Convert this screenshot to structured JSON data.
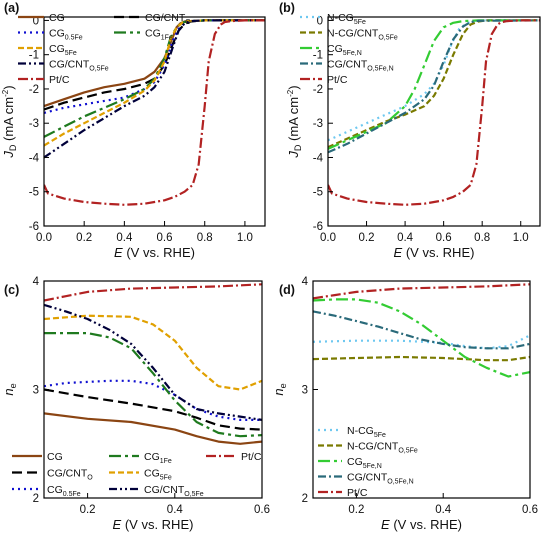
{
  "panel_labels": [
    "(a)",
    "(b)",
    "(c)",
    "(d)"
  ],
  "colors": {
    "CG": "#8b4513",
    "CG_CNTO": "#000000",
    "CG05Fe": "#1010d0",
    "CG1Fe": "#1f7a1f",
    "CG5Fe": "#e0a000",
    "CG_CNT05Fe": "#00003a",
    "PtC": "#b22222",
    "NCG5Fe": "#6ec8f0",
    "NCG_CNT05Fe": "#7a7a00",
    "CG5FeN": "#33cc33",
    "CG_CNT05FeN": "#2a6a7a"
  },
  "chart_data": [
    {
      "panel": "(a)",
      "type": "line",
      "xlabel": {
        "italic": "E",
        "rest": " (V vs. RHE)"
      },
      "ylabel": {
        "italic": "J",
        "sub": "D",
        "rest": " (mA cm",
        "sup": "-2",
        "end": ")"
      },
      "xlim": [
        0.0,
        1.1
      ],
      "ylim": [
        -6,
        0.1
      ],
      "xticks": [
        "0.0",
        "0.2",
        "0.4",
        "0.6",
        "0.8",
        "1.0"
      ],
      "yticks": [
        "0",
        "-1",
        "-2",
        "-3",
        "-4",
        "-5",
        "-6"
      ],
      "series": [
        {
          "key": "CG",
          "name": "CG",
          "sub": "",
          "dash": "",
          "x": [
            0,
            0.1,
            0.2,
            0.3,
            0.4,
            0.5,
            0.55,
            0.6,
            0.64,
            0.66,
            0.68,
            0.7,
            0.75,
            0.8,
            1.1
          ],
          "y": [
            -2.5,
            -2.3,
            -2.1,
            -1.95,
            -1.85,
            -1.7,
            -1.5,
            -1.1,
            -0.5,
            -0.2,
            -0.08,
            -0.03,
            -0.01,
            0,
            0
          ]
        },
        {
          "key": "CG_CNTO",
          "name": "CG/CNT",
          "sub": "O",
          "dash": "10 5",
          "x": [
            0,
            0.1,
            0.2,
            0.3,
            0.4,
            0.5,
            0.55,
            0.6,
            0.64,
            0.67,
            0.7,
            0.73,
            0.8,
            1.1
          ],
          "y": [
            -2.6,
            -2.4,
            -2.25,
            -2.1,
            -2.0,
            -1.85,
            -1.7,
            -1.3,
            -0.7,
            -0.3,
            -0.1,
            -0.03,
            0,
            0
          ]
        },
        {
          "key": "CG05Fe",
          "name": "CG",
          "sub": "0.5Fe",
          "dash": "2 4",
          "x": [
            0,
            0.1,
            0.2,
            0.3,
            0.4,
            0.5,
            0.55,
            0.6,
            0.64,
            0.67,
            0.7,
            0.73,
            0.8,
            1.1
          ],
          "y": [
            -2.7,
            -2.55,
            -2.45,
            -2.35,
            -2.25,
            -2.0,
            -1.8,
            -1.3,
            -0.6,
            -0.25,
            -0.08,
            -0.02,
            0,
            0
          ]
        },
        {
          "key": "CG1Fe",
          "name": "CG",
          "sub": "1Fe",
          "dash": "12 4 3 4",
          "x": [
            0,
            0.1,
            0.2,
            0.3,
            0.4,
            0.5,
            0.55,
            0.6,
            0.63,
            0.66,
            0.69,
            0.72,
            0.8,
            1.1
          ],
          "y": [
            -3.4,
            -3.1,
            -2.8,
            -2.55,
            -2.3,
            -2.0,
            -1.7,
            -1.1,
            -0.5,
            -0.2,
            -0.06,
            -0.02,
            0,
            0
          ]
        },
        {
          "key": "CG5Fe",
          "name": "CG",
          "sub": "5Fe",
          "dash": "6 3",
          "x": [
            0,
            0.1,
            0.2,
            0.3,
            0.4,
            0.5,
            0.55,
            0.6,
            0.63,
            0.66,
            0.69,
            0.72,
            0.8,
            1.1
          ],
          "y": [
            -3.65,
            -3.3,
            -3.0,
            -2.7,
            -2.4,
            -2.05,
            -1.75,
            -1.2,
            -0.55,
            -0.2,
            -0.06,
            -0.02,
            0,
            0
          ]
        },
        {
          "key": "CG_CNT05Fe",
          "name": "CG/CNT",
          "sub": "O,5Fe",
          "dash": "8 3 2 3 2 3",
          "x": [
            0,
            0.1,
            0.2,
            0.3,
            0.4,
            0.5,
            0.55,
            0.6,
            0.64,
            0.67,
            0.7,
            0.73,
            0.8,
            1.1
          ],
          "y": [
            -4.0,
            -3.6,
            -3.2,
            -2.85,
            -2.5,
            -2.2,
            -1.95,
            -1.5,
            -0.8,
            -0.3,
            -0.08,
            -0.02,
            0,
            0
          ]
        },
        {
          "key": "PtC",
          "name": "Pt/C",
          "sub": "",
          "dash": "10 3 2 3",
          "x": [
            0,
            0.02,
            0.1,
            0.2,
            0.3,
            0.4,
            0.5,
            0.6,
            0.65,
            0.7,
            0.74,
            0.77,
            0.8,
            0.82,
            0.85,
            0.88,
            0.9,
            0.93,
            0.96,
            1.0,
            1.1
          ],
          "y": [
            -4.8,
            -5.05,
            -5.2,
            -5.3,
            -5.35,
            -5.38,
            -5.35,
            -5.25,
            -5.15,
            -5.0,
            -4.8,
            -4.2,
            -2.5,
            -1.2,
            -0.4,
            -0.12,
            -0.05,
            -0.02,
            -0.01,
            0,
            0
          ]
        }
      ],
      "legend_layout": "two-column-top-left",
      "legend": [
        {
          "key": "CG",
          "col": 0,
          "row": 0
        },
        {
          "key": "CG_CNTO",
          "col": 1,
          "row": 0
        },
        {
          "key": "CG05Fe",
          "col": 0,
          "row": 1
        },
        {
          "key": "CG1Fe",
          "col": 1,
          "row": 1
        },
        {
          "key": "CG5Fe",
          "col": 0,
          "row": 2
        },
        {
          "key": "CG_CNT05Fe",
          "col": 0,
          "row": 3
        },
        {
          "key": "PtC",
          "col": 0,
          "row": 4
        }
      ]
    },
    {
      "panel": "(b)",
      "type": "line",
      "xlabel": {
        "italic": "E",
        "rest": " (V vs. RHE)"
      },
      "ylabel": {
        "italic": "J",
        "sub": "D",
        "rest": " (mA cm",
        "sup": "-2",
        "end": ")"
      },
      "xlim": [
        0.0,
        1.1
      ],
      "ylim": [
        -6,
        0.1
      ],
      "xticks": [
        "0.0",
        "0.2",
        "0.4",
        "0.6",
        "0.8",
        "1.0"
      ],
      "yticks": [
        "0",
        "-1",
        "-2",
        "-3",
        "-4",
        "-5",
        "-6"
      ],
      "series": [
        {
          "key": "NCG5Fe",
          "name": "N-CG",
          "sub": "5Fe",
          "dash": "2 4",
          "x": [
            0,
            0.1,
            0.2,
            0.3,
            0.4,
            0.5,
            0.55,
            0.6,
            0.64,
            0.68,
            0.72,
            0.76,
            0.8,
            1.1
          ],
          "y": [
            -3.5,
            -3.25,
            -3.0,
            -2.75,
            -2.5,
            -2.15,
            -1.85,
            -1.3,
            -0.7,
            -0.25,
            -0.08,
            -0.02,
            0,
            0
          ]
        },
        {
          "key": "NCG_CNT05Fe",
          "name": "N-CG/CNT",
          "sub": "O,5Fe",
          "dash": "6 3",
          "x": [
            0,
            0.1,
            0.2,
            0.3,
            0.4,
            0.5,
            0.55,
            0.6,
            0.65,
            0.7,
            0.74,
            0.78,
            0.82,
            1.1
          ],
          "y": [
            -3.7,
            -3.45,
            -3.2,
            -2.95,
            -2.75,
            -2.5,
            -2.2,
            -1.7,
            -1.0,
            -0.4,
            -0.12,
            -0.03,
            0,
            0
          ]
        },
        {
          "key": "CG5FeN",
          "name": "CG",
          "sub": "5Fe,N",
          "dash": "12 4 3 4",
          "x": [
            0,
            0.1,
            0.2,
            0.3,
            0.4,
            0.45,
            0.5,
            0.55,
            0.6,
            0.65,
            0.7,
            0.74,
            0.78,
            1.1
          ],
          "y": [
            -3.75,
            -3.5,
            -3.25,
            -3.0,
            -2.5,
            -2.0,
            -1.3,
            -0.6,
            -0.2,
            -0.07,
            -0.02,
            -0.01,
            0,
            0
          ]
        },
        {
          "key": "CG_CNT05FeN",
          "name": "CG/CNT",
          "sub": "O,5Fe,N",
          "dash": "8 3 2 3",
          "x": [
            0,
            0.1,
            0.2,
            0.3,
            0.4,
            0.5,
            0.55,
            0.6,
            0.65,
            0.7,
            0.74,
            0.78,
            1.1
          ],
          "y": [
            -3.85,
            -3.6,
            -3.3,
            -3.0,
            -2.7,
            -2.3,
            -1.9,
            -1.2,
            -0.55,
            -0.18,
            -0.05,
            -0.01,
            0
          ]
        },
        {
          "key": "PtC",
          "name": "Pt/C",
          "sub": "",
          "dash": "10 3 2 3",
          "x": [
            0,
            0.02,
            0.1,
            0.2,
            0.3,
            0.4,
            0.5,
            0.6,
            0.65,
            0.7,
            0.74,
            0.77,
            0.8,
            0.82,
            0.85,
            0.88,
            0.9,
            0.93,
            0.96,
            1.0,
            1.1
          ],
          "y": [
            -4.8,
            -5.05,
            -5.2,
            -5.3,
            -5.35,
            -5.38,
            -5.35,
            -5.25,
            -5.15,
            -5.0,
            -4.8,
            -4.2,
            -2.5,
            -1.2,
            -0.4,
            -0.12,
            -0.05,
            -0.02,
            -0.01,
            0,
            0
          ]
        }
      ],
      "legend_layout": "single-column-top-left",
      "legend": [
        {
          "key": "NCG5Fe",
          "col": 0,
          "row": 0
        },
        {
          "key": "NCG_CNT05Fe",
          "col": 0,
          "row": 1
        },
        {
          "key": "CG5FeN",
          "col": 0,
          "row": 2
        },
        {
          "key": "CG_CNT05FeN",
          "col": 0,
          "row": 3
        },
        {
          "key": "PtC",
          "col": 0,
          "row": 4
        }
      ]
    },
    {
      "panel": "(c)",
      "type": "line",
      "xlabel": {
        "italic": "E",
        "rest": " (V vs. RHE)"
      },
      "ylabel": {
        "italic": "n",
        "sub": "e"
      },
      "xlim": [
        0.1,
        0.6
      ],
      "ylim": [
        2,
        4
      ],
      "xticks": [
        "0.2",
        "0.4",
        "0.6"
      ],
      "yticks": [
        "2",
        "3",
        "4"
      ],
      "series": [
        {
          "key": "CG",
          "name": "CG",
          "sub": "",
          "dash": "",
          "x": [
            0.1,
            0.2,
            0.3,
            0.4,
            0.45,
            0.5,
            0.55,
            0.6
          ],
          "y": [
            2.78,
            2.73,
            2.7,
            2.63,
            2.57,
            2.52,
            2.5,
            2.52
          ]
        },
        {
          "key": "CG_CNTO",
          "name": "CG/CNT",
          "sub": "O",
          "dash": "10 5",
          "x": [
            0.1,
            0.2,
            0.3,
            0.4,
            0.45,
            0.5,
            0.55,
            0.6
          ],
          "y": [
            3.0,
            2.93,
            2.87,
            2.8,
            2.74,
            2.67,
            2.64,
            2.63
          ]
        },
        {
          "key": "CG05Fe",
          "name": "CG",
          "sub": "0.5Fe",
          "dash": "2 4",
          "x": [
            0.1,
            0.15,
            0.2,
            0.25,
            0.3,
            0.35,
            0.4,
            0.45,
            0.5,
            0.55,
            0.6
          ],
          "y": [
            3.03,
            3.06,
            3.07,
            3.08,
            3.08,
            3.05,
            2.95,
            2.82,
            2.75,
            2.72,
            2.72
          ]
        },
        {
          "key": "CG1Fe",
          "name": "CG",
          "sub": "1Fe",
          "dash": "12 4 3 4",
          "x": [
            0.1,
            0.2,
            0.25,
            0.3,
            0.35,
            0.4,
            0.45,
            0.5,
            0.55,
            0.6
          ],
          "y": [
            3.52,
            3.52,
            3.48,
            3.38,
            3.15,
            2.9,
            2.7,
            2.6,
            2.57,
            2.58
          ]
        },
        {
          "key": "CG5Fe",
          "name": "CG",
          "sub": "5Fe",
          "dash": "6 3",
          "x": [
            0.1,
            0.2,
            0.3,
            0.35,
            0.4,
            0.45,
            0.5,
            0.55,
            0.6
          ],
          "y": [
            3.65,
            3.68,
            3.67,
            3.6,
            3.45,
            3.2,
            3.03,
            3.0,
            3.08
          ]
        },
        {
          "key": "CG_CNT05Fe",
          "name": "CG/CNT",
          "sub": "O,5Fe",
          "dash": "8 3 2 3 2 3",
          "x": [
            0.1,
            0.15,
            0.2,
            0.25,
            0.3,
            0.35,
            0.4,
            0.45,
            0.5,
            0.55,
            0.6
          ],
          "y": [
            3.78,
            3.72,
            3.65,
            3.55,
            3.42,
            3.2,
            2.95,
            2.82,
            2.78,
            2.75,
            2.72
          ]
        },
        {
          "key": "PtC",
          "name": "Pt/C",
          "sub": "",
          "dash": "10 3 2 3",
          "x": [
            0.1,
            0.15,
            0.2,
            0.3,
            0.4,
            0.5,
            0.6
          ],
          "y": [
            3.82,
            3.86,
            3.9,
            3.93,
            3.94,
            3.95,
            3.97
          ]
        }
      ],
      "legend_layout": "three-column-bottom",
      "legend": [
        {
          "key": "CG",
          "col": 0,
          "row": 0
        },
        {
          "key": "CG1Fe",
          "col": 1,
          "row": 0
        },
        {
          "key": "PtC",
          "col": 2,
          "row": 0
        },
        {
          "key": "CG_CNTO",
          "col": 0,
          "row": 1
        },
        {
          "key": "CG5Fe",
          "col": 1,
          "row": 1
        },
        {
          "key": "CG05Fe",
          "col": 0,
          "row": 2
        },
        {
          "key": "CG_CNT05Fe",
          "col": 1,
          "row": 2
        }
      ]
    },
    {
      "panel": "(d)",
      "type": "line",
      "xlabel": {
        "italic": "E",
        "rest": " (V vs. RHE)"
      },
      "ylabel": {
        "italic": "n",
        "sub": "e"
      },
      "xlim": [
        0.1,
        0.6
      ],
      "ylim": [
        2,
        4
      ],
      "xticks": [
        "0.2",
        "0.4",
        "0.6"
      ],
      "yticks": [
        "2",
        "3",
        "4"
      ],
      "series": [
        {
          "key": "NCG5Fe",
          "name": "N-CG",
          "sub": "5Fe",
          "dash": "2 4",
          "x": [
            0.1,
            0.2,
            0.3,
            0.4,
            0.45,
            0.5,
            0.55,
            0.6
          ],
          "y": [
            3.44,
            3.45,
            3.45,
            3.43,
            3.4,
            3.38,
            3.4,
            3.5
          ]
        },
        {
          "key": "NCG_CNT05Fe",
          "name": "N-CG/CNT",
          "sub": "O,5Fe",
          "dash": "6 3",
          "x": [
            0.1,
            0.2,
            0.3,
            0.4,
            0.5,
            0.55,
            0.6
          ],
          "y": [
            3.28,
            3.29,
            3.3,
            3.29,
            3.27,
            3.27,
            3.3
          ]
        },
        {
          "key": "CG5FeN",
          "name": "CG",
          "sub": "5Fe,N",
          "dash": "12 4 3 4",
          "x": [
            0.1,
            0.15,
            0.2,
            0.25,
            0.3,
            0.35,
            0.4,
            0.45,
            0.5,
            0.55,
            0.6
          ],
          "y": [
            3.82,
            3.83,
            3.83,
            3.8,
            3.72,
            3.6,
            3.45,
            3.3,
            3.2,
            3.12,
            3.16
          ]
        },
        {
          "key": "CG_CNT05FeN",
          "name": "CG/CNT",
          "sub": "O,5Fe,N",
          "dash": "8 3 2 3",
          "x": [
            0.1,
            0.15,
            0.2,
            0.25,
            0.3,
            0.35,
            0.4,
            0.45,
            0.5,
            0.55,
            0.6
          ],
          "y": [
            3.72,
            3.68,
            3.63,
            3.58,
            3.52,
            3.46,
            3.42,
            3.39,
            3.38,
            3.38,
            3.42
          ]
        },
        {
          "key": "PtC",
          "name": "Pt/C",
          "sub": "",
          "dash": "10 3 2 3",
          "x": [
            0.1,
            0.15,
            0.2,
            0.3,
            0.4,
            0.5,
            0.6
          ],
          "y": [
            3.84,
            3.87,
            3.9,
            3.93,
            3.94,
            3.95,
            3.97
          ]
        }
      ],
      "legend_layout": "single-column-bottom-left",
      "legend": [
        {
          "key": "NCG5Fe",
          "col": 0,
          "row": 0
        },
        {
          "key": "NCG_CNT05Fe",
          "col": 0,
          "row": 1
        },
        {
          "key": "CG5FeN",
          "col": 0,
          "row": 2
        },
        {
          "key": "CG_CNT05FeN",
          "col": 0,
          "row": 3
        },
        {
          "key": "PtC",
          "col": 0,
          "row": 4
        }
      ]
    }
  ]
}
